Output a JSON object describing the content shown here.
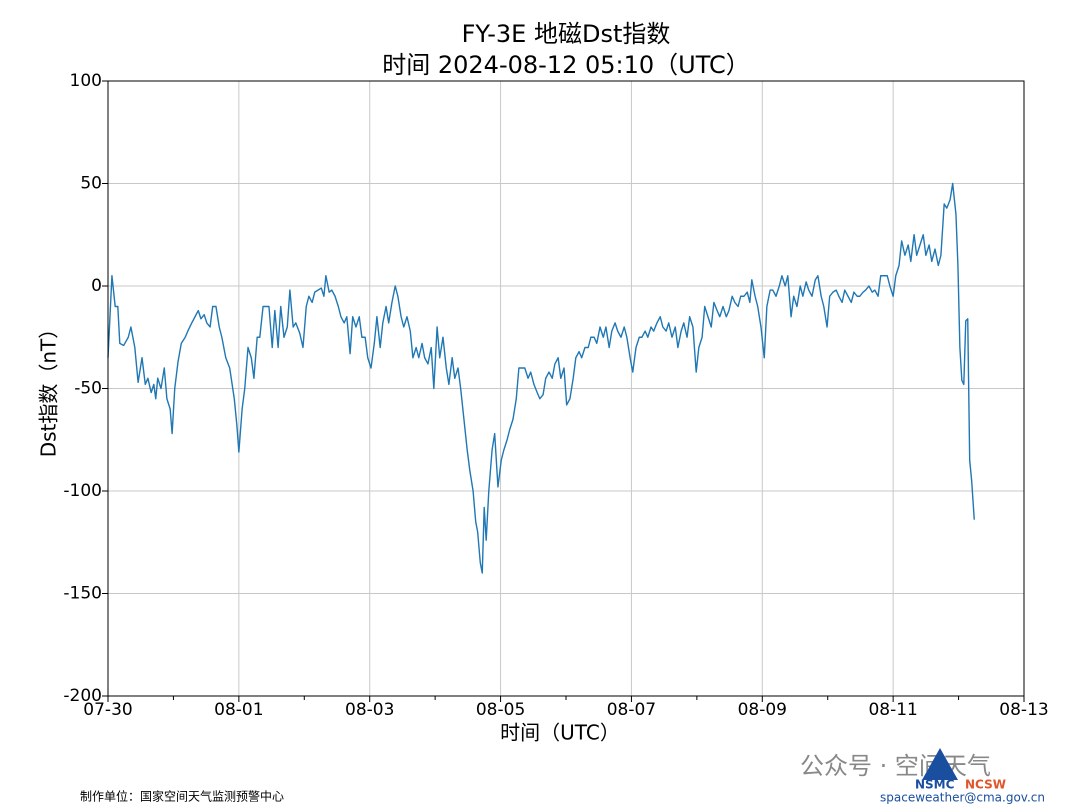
{
  "chart_data": {
    "type": "line",
    "title": "FY-3E 地磁Dst指数",
    "subtitle": "时间 2024-08-12 05:10（UTC）",
    "x_label": "时间（UTC）",
    "y_label": "Dst指数（nT）",
    "color": "#1f77b4",
    "grid": true,
    "xlim": [
      0,
      14
    ],
    "ylim": [
      -200,
      100
    ],
    "xticks": [
      {
        "value": 0,
        "label": "07-30"
      },
      {
        "value": 2,
        "label": "08-01"
      },
      {
        "value": 4,
        "label": "08-03"
      },
      {
        "value": 6,
        "label": "08-05"
      },
      {
        "value": 8,
        "label": "08-07"
      },
      {
        "value": 10,
        "label": "08-09"
      },
      {
        "value": 12,
        "label": "08-11"
      },
      {
        "value": 14,
        "label": "08-13"
      }
    ],
    "xminor_ticks": [
      1,
      3,
      5,
      7,
      9,
      11,
      13
    ],
    "yticks": [
      100,
      50,
      0,
      -50,
      -100,
      -150,
      -200
    ],
    "x": [
      0,
      0.06,
      0.11,
      0.15,
      0.18,
      0.24,
      0.31,
      0.35,
      0.41,
      0.46,
      0.52,
      0.57,
      0.61,
      0.66,
      0.7,
      0.73,
      0.76,
      0.81,
      0.86,
      0.9,
      0.95,
      0.98,
      1.02,
      1.07,
      1.12,
      1.18,
      1.22,
      1.28,
      1.33,
      1.38,
      1.42,
      1.47,
      1.51,
      1.56,
      1.6,
      1.65,
      1.7,
      1.74,
      1.8,
      1.86,
      1.93,
      1.97,
      2.0,
      2.05,
      2.09,
      2.14,
      2.19,
      2.23,
      2.28,
      2.32,
      2.37,
      2.41,
      2.46,
      2.51,
      2.55,
      2.6,
      2.64,
      2.69,
      2.74,
      2.78,
      2.83,
      2.87,
      2.93,
      2.98,
      3.03,
      3.07,
      3.12,
      3.16,
      3.21,
      3.26,
      3.3,
      3.33,
      3.38,
      3.42,
      3.47,
      3.52,
      3.56,
      3.61,
      3.65,
      3.7,
      3.74,
      3.79,
      3.84,
      3.88,
      3.93,
      3.97,
      4.02,
      4.07,
      4.11,
      4.16,
      4.2,
      4.25,
      4.29,
      4.34,
      4.39,
      4.43,
      4.48,
      4.52,
      4.57,
      4.62,
      4.66,
      4.71,
      4.75,
      4.8,
      4.84,
      4.89,
      4.94,
      4.98,
      5.03,
      5.07,
      5.12,
      5.17,
      5.21,
      5.26,
      5.3,
      5.35,
      5.39,
      5.44,
      5.49,
      5.53,
      5.58,
      5.62,
      5.65,
      5.69,
      5.72,
      5.75,
      5.78,
      5.82,
      5.87,
      5.91,
      5.96,
      6.01,
      6.05,
      6.1,
      6.14,
      6.19,
      6.24,
      6.28,
      6.33,
      6.37,
      6.42,
      6.46,
      6.51,
      6.56,
      6.6,
      6.65,
      6.69,
      6.74,
      6.79,
      6.83,
      6.88,
      6.92,
      6.97,
      7.01,
      7.06,
      7.11,
      7.15,
      7.2,
      7.24,
      7.29,
      7.34,
      7.38,
      7.43,
      7.47,
      7.52,
      7.57,
      7.61,
      7.66,
      7.7,
      7.75,
      7.79,
      7.84,
      7.89,
      7.93,
      7.98,
      8.02,
      8.07,
      8.12,
      8.16,
      8.21,
      8.25,
      8.3,
      8.34,
      8.39,
      8.44,
      8.48,
      8.53,
      8.57,
      8.62,
      8.67,
      8.71,
      8.76,
      8.8,
      8.85,
      8.89,
      8.94,
      8.99,
      9.03,
      9.08,
      9.12,
      9.17,
      9.22,
      9.26,
      9.31,
      9.35,
      9.4,
      9.45,
      9.49,
      9.54,
      9.58,
      9.63,
      9.67,
      9.72,
      9.77,
      9.81,
      9.84,
      9.89,
      9.93,
      9.98,
      10.03,
      10.07,
      10.12,
      10.16,
      10.21,
      10.26,
      10.3,
      10.35,
      10.39,
      10.44,
      10.48,
      10.53,
      10.58,
      10.62,
      10.67,
      10.71,
      10.76,
      10.81,
      10.85,
      10.9,
      10.94,
      10.99,
      11.03,
      11.08,
      11.13,
      11.17,
      11.22,
      11.26,
      11.31,
      11.36,
      11.4,
      11.45,
      11.49,
      11.54,
      11.58,
      11.63,
      11.68,
      11.72,
      11.77,
      11.81,
      11.86,
      11.91,
      11.95,
      12.0,
      12.04,
      12.09,
      12.13,
      12.18,
      12.23,
      12.27,
      12.32,
      12.36,
      12.41,
      12.46,
      12.5,
      12.55,
      12.59,
      12.64,
      12.69,
      12.73,
      12.78,
      12.82,
      12.87,
      12.91,
      12.96,
      12.99,
      13.02,
      13.05,
      13.08,
      13.11,
      13.14,
      13.17,
      13.2,
      13.24
    ],
    "values": [
      -35,
      5,
      -10,
      -10,
      -28,
      -29,
      -25,
      -20,
      -30,
      -47,
      -35,
      -48,
      -45,
      -52,
      -48,
      -55,
      -45,
      -50,
      -40,
      -55,
      -60,
      -72,
      -50,
      -37,
      -28,
      -25,
      -22,
      -18,
      -15,
      -12,
      -16,
      -14,
      -18,
      -20,
      -10,
      -10,
      -20,
      -25,
      -35,
      -40,
      -55,
      -68,
      -81,
      -60,
      -50,
      -30,
      -35,
      -45,
      -25,
      -25,
      -10,
      -10,
      -10,
      -30,
      -12,
      -30,
      -10,
      -25,
      -20,
      -2,
      -20,
      -18,
      -23,
      -30,
      -10,
      -5,
      -8,
      -3,
      -2,
      -1,
      -5,
      5,
      -3,
      -2,
      -5,
      -10,
      -15,
      -18,
      -15,
      -33,
      -15,
      -20,
      -15,
      -25,
      -25,
      -35,
      -40,
      -28,
      -15,
      -30,
      -18,
      -10,
      -18,
      -8,
      0,
      -5,
      -15,
      -20,
      -15,
      -22,
      -35,
      -30,
      -35,
      -28,
      -35,
      -38,
      -30,
      -50,
      -20,
      -35,
      -25,
      -40,
      -48,
      -35,
      -45,
      -40,
      -50,
      -65,
      -80,
      -90,
      -100,
      -115,
      -120,
      -135,
      -140,
      -108,
      -124,
      -100,
      -80,
      -72,
      -98,
      -85,
      -80,
      -75,
      -70,
      -65,
      -55,
      -40,
      -40,
      -40,
      -45,
      -42,
      -48,
      -52,
      -55,
      -53,
      -45,
      -42,
      -45,
      -38,
      -35,
      -45,
      -40,
      -58,
      -55,
      -45,
      -35,
      -32,
      -35,
      -30,
      -30,
      -25,
      -25,
      -28,
      -20,
      -25,
      -20,
      -30,
      -22,
      -18,
      -22,
      -25,
      -20,
      -25,
      -35,
      -42,
      -30,
      -25,
      -25,
      -22,
      -25,
      -20,
      -22,
      -18,
      -15,
      -20,
      -22,
      -18,
      -25,
      -20,
      -30,
      -22,
      -18,
      -25,
      -15,
      -20,
      -42,
      -30,
      -25,
      -10,
      -15,
      -20,
      -8,
      -12,
      -15,
      -10,
      -15,
      -12,
      -5,
      -8,
      -10,
      -5,
      -5,
      -3,
      -8,
      3,
      -5,
      -10,
      -20,
      -35,
      -10,
      -2,
      -2,
      -5,
      0,
      5,
      0,
      5,
      -15,
      -5,
      -10,
      0,
      -5,
      2,
      -2,
      -5,
      3,
      5,
      -5,
      -10,
      -20,
      -5,
      -3,
      -2,
      -5,
      -8,
      -2,
      -5,
      -8,
      -3,
      -5,
      -5,
      -3,
      -2,
      0,
      -3,
      -2,
      -5,
      5,
      5,
      5,
      0,
      -5,
      5,
      10,
      22,
      15,
      20,
      12,
      25,
      15,
      20,
      25,
      15,
      20,
      12,
      18,
      10,
      15,
      40,
      38,
      42,
      50,
      35,
      10,
      -30,
      -46,
      -48,
      -17,
      -16,
      -85,
      -95,
      -114
    ]
  },
  "footer": {
    "producer": "制作单位：国家空间天气监测预警中心",
    "watermark": "公众号 · 空间天气",
    "logo_left": "NSMC",
    "logo_right": "NCSW",
    "email": "spaceweather@cma.gov.cn"
  }
}
